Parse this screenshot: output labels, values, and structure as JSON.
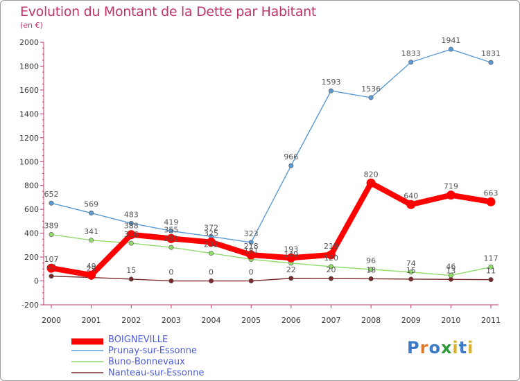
{
  "header": {
    "title": "Evolution du Montant de la Dette par Habitant",
    "subtitle": "(en €)"
  },
  "logo": {
    "text": "Proxiti",
    "letter_colors": [
      "#3a78c8",
      "#e07a2a",
      "#3a78c8",
      "#2f9a3a",
      "#d9b12a",
      "#3a78c8",
      "#d9b12a"
    ]
  },
  "chart_data": {
    "type": "line",
    "title": "Evolution du Montant de la Dette par Habitant",
    "ylabel": "(en €)",
    "xlabel": "",
    "x": [
      "2000",
      "2001",
      "2002",
      "2003",
      "2004",
      "2005",
      "2006",
      "2007",
      "2008",
      "2009",
      "2010",
      "2011"
    ],
    "ylim": [
      -200,
      2000
    ],
    "yticks": [
      -200,
      0,
      200,
      400,
      600,
      800,
      1000,
      1200,
      1400,
      1600,
      1800,
      2000
    ],
    "grid": false,
    "legend_position": "bottom-left",
    "series": [
      {
        "name": "BOIGNEVILLE",
        "color": "#ff0000",
        "values": [
          107,
          49,
          388,
          355,
          325,
          218,
          193,
          219,
          820,
          640,
          719,
          663
        ],
        "labels": [
          "107",
          "49",
          "388",
          "355",
          "325",
          "218",
          "193",
          "219",
          "820",
          "640",
          "719",
          "663"
        ]
      },
      {
        "name": "Prunay-sur-Essonne",
        "color": "#5b9bd5",
        "values": [
          652,
          569,
          483,
          419,
          372,
          323,
          966,
          1593,
          1536,
          1833,
          1941,
          1831
        ],
        "labels": [
          "652",
          "569",
          "483",
          "419",
          "372",
          "323",
          "966",
          "1593",
          "1536",
          "1833",
          "1941",
          "1831"
        ]
      },
      {
        "name": "Buno-Bonnevaux",
        "color": "#8fdc6a",
        "values": [
          389,
          341,
          316,
          281,
          232,
          181,
          149,
          120,
          96,
          74,
          46,
          117
        ],
        "labels": [
          "389",
          "341",
          "316",
          "281",
          "232",
          "181",
          "149",
          "120",
          "96",
          "74",
          "46",
          "117"
        ]
      },
      {
        "name": "Nanteau-sur-Essonne",
        "color": "#7a2a2a",
        "values": [
          40,
          29,
          15,
          0,
          0,
          0,
          22,
          20,
          18,
          15,
          13,
          11
        ],
        "labels": [
          "40",
          "29",
          "15",
          "0",
          "0",
          "0",
          "22",
          "20",
          "18",
          "15",
          "13",
          "11"
        ]
      }
    ]
  }
}
